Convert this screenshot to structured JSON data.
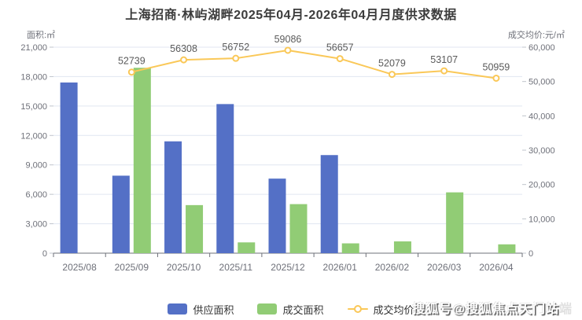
{
  "title": "上海招商·林屿湖畔2025年04月-2026年04月月度供求数据",
  "watermark": {
    "text": "搜狐号@搜狐焦点天门站",
    "faint_mark": "端"
  },
  "legend": {
    "items": [
      {
        "label": "供应面积",
        "type": "bar",
        "color": "#5470C6"
      },
      {
        "label": "成交面积",
        "type": "bar",
        "color": "#91CC75"
      },
      {
        "label": "成交均价",
        "type": "line",
        "color": "#FAC858"
      }
    ]
  },
  "chart_data": {
    "type": "bar",
    "combo": "dual-axis bar + line",
    "title": "上海招商·林屿湖畔2025年04月-2026年04月月度供求数据",
    "categories": [
      "2025/08",
      "2025/09",
      "2025/10",
      "2025/11",
      "2025/12",
      "2026/01",
      "2026/02",
      "2026/03",
      "2026/04"
    ],
    "left_axis": {
      "name": "面积:㎡",
      "min": 0,
      "max": 21000,
      "step": 3000,
      "ticks": [
        0,
        3000,
        6000,
        9000,
        12000,
        15000,
        18000,
        21000
      ],
      "tick_labels": [
        "0",
        "3,000",
        "6,000",
        "9,000",
        "12,000",
        "15,000",
        "18,000",
        "21,000"
      ]
    },
    "right_axis": {
      "name": "成交均价:元/㎡",
      "min": 0,
      "max": 60000,
      "step": 10000,
      "ticks": [
        0,
        10000,
        20000,
        30000,
        40000,
        50000,
        60000
      ],
      "tick_labels": [
        "0",
        "10,000",
        "20,000",
        "30,000",
        "40,000",
        "50,000",
        "60,000"
      ]
    },
    "grid": true,
    "legend_position": "bottom",
    "series": [
      {
        "name": "供应面积",
        "type": "bar",
        "axis": "left",
        "color": "#5470C6",
        "values": [
          17400,
          7900,
          11400,
          15200,
          7600,
          10000,
          null,
          null,
          null
        ]
      },
      {
        "name": "成交面积",
        "type": "bar",
        "axis": "left",
        "color": "#91CC75",
        "values": [
          null,
          18900,
          4900,
          1100,
          5000,
          1000,
          1200,
          6200,
          900
        ]
      },
      {
        "name": "成交均价",
        "type": "line",
        "axis": "right",
        "color": "#FAC858",
        "values": [
          null,
          52739,
          56308,
          56752,
          59086,
          56657,
          52079,
          53107,
          50959
        ],
        "value_labels": [
          null,
          "52739",
          "56308",
          "56752",
          "59086",
          "56657",
          "52079",
          "53107",
          "50959"
        ]
      }
    ],
    "colors": {
      "grid_line": "#E0E6F1",
      "axis_line": "#6E7079",
      "tick_text": "#6E7079",
      "point_label_text": "#5a5a5a"
    }
  }
}
